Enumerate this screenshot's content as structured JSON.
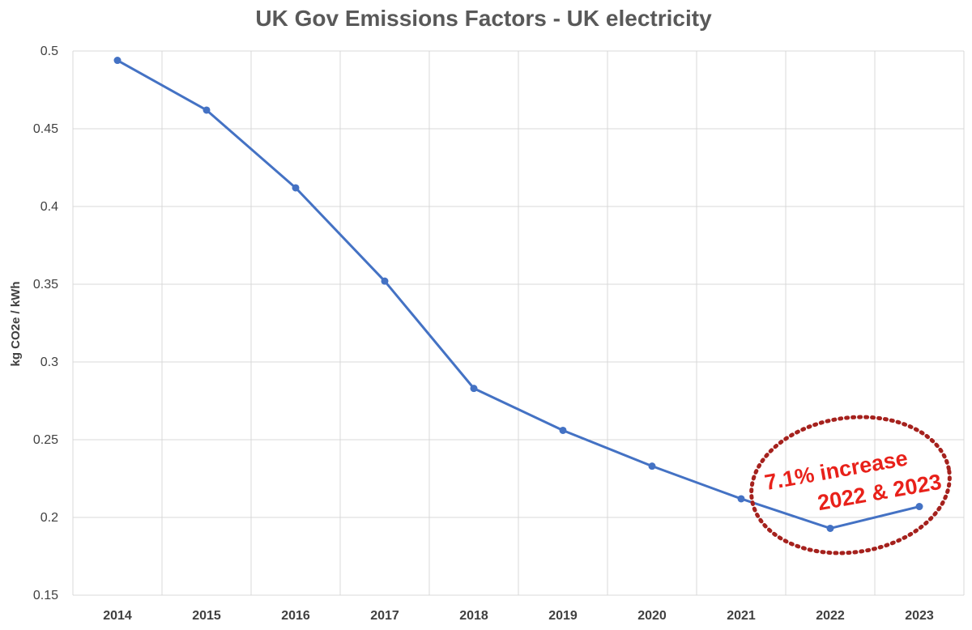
{
  "colors": {
    "series": "#4472c4",
    "grid": "#d9d9d9",
    "annotation_text": "#e8211a",
    "annotation_ellipse": "#a5211d"
  },
  "chart_data": {
    "type": "line",
    "title": "UK Gov Emissions Factors - UK electricity",
    "xlabel": "",
    "ylabel": "kg CO2e / kWh",
    "categories": [
      "2014",
      "2015",
      "2016",
      "2017",
      "2018",
      "2019",
      "2020",
      "2021",
      "2022",
      "2023"
    ],
    "series": [
      {
        "name": "",
        "values": [
          0.494,
          0.462,
          0.412,
          0.352,
          0.283,
          0.256,
          0.233,
          0.212,
          0.193,
          0.207
        ]
      }
    ],
    "ylim": [
      0.15,
      0.5
    ],
    "yticks": [
      "0.15",
      "0.2",
      "0.25",
      "0.3",
      "0.35",
      "0.4",
      "0.45",
      "0.5"
    ],
    "grid": true,
    "legend": "none",
    "annotation": {
      "lines": [
        "7.1% increase",
        "2022 & 2023"
      ],
      "style": "dotted-ellipse",
      "target_categories": [
        "2022",
        "2023"
      ]
    }
  }
}
